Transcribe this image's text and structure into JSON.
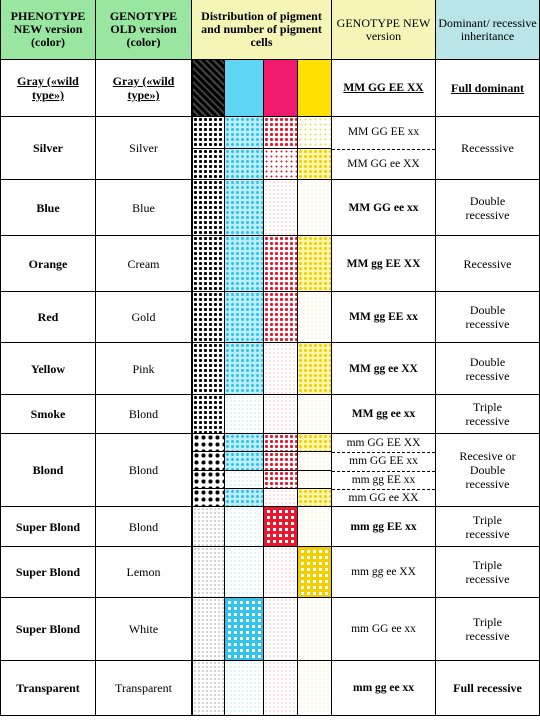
{
  "headers": {
    "phenotype_new": "PHENOTYPE NEW version (color)",
    "genotype_old": "GENOTYPE OLD version (color)",
    "distribution": "Distribution of pigment and number of pigment cells",
    "genotype_new": "GENOTYPE NEW version",
    "inheritance": "Dominant/ recessive inheritance"
  },
  "colors": {
    "header_green": "#99e6a0",
    "header_yellow": "#f5f5b8",
    "header_blue": "#b9e4e8",
    "pigment_black": "#000000",
    "pigment_cyan": "#5fd4f5",
    "pigment_red": "#e8192e",
    "pigment_yellow": "#ffe000"
  },
  "rows": [
    {
      "phenotype": "Gray («wild type»)",
      "old": "Gray («wild type»)",
      "genotypes": [
        "MM GG EE XX"
      ],
      "inheritance": "Full dominant"
    },
    {
      "phenotype": "Silver",
      "old": "Silver",
      "genotypes": [
        "MM GG EE xx",
        "MM GG ee XX"
      ],
      "inheritance": "Recesssive"
    },
    {
      "phenotype": "Blue",
      "old": "Blue",
      "genotypes": [
        "MM GG ee xx"
      ],
      "inheritance": "Double recessive"
    },
    {
      "phenotype": "Orange",
      "old": "Cream",
      "genotypes": [
        "MM gg EE XX"
      ],
      "inheritance": "Recessive"
    },
    {
      "phenotype": "Red",
      "old": "Gold",
      "genotypes": [
        "MM gg EE xx"
      ],
      "inheritance": "Double recessive"
    },
    {
      "phenotype": "Yellow",
      "old": "Pink",
      "genotypes": [
        "MM gg ee XX"
      ],
      "inheritance": "Double recessive"
    },
    {
      "phenotype": "Smoke",
      "old": "Blond",
      "genotypes": [
        "MM gg ee xx"
      ],
      "inheritance": "Triple recessive"
    },
    {
      "phenotype": "Blond",
      "old": "Blond",
      "genotypes": [
        "mm GG EE XX",
        "mm GG EE xx",
        "mm gg EE xx",
        "mm GG ee XX"
      ],
      "inheritance": "Recesive or Double recessive"
    },
    {
      "phenotype": "Super Blond",
      "old": "Blond",
      "genotypes": [
        "mm gg EE xx"
      ],
      "inheritance": "Triple recessive"
    },
    {
      "phenotype": "Super Blond",
      "old": "Lemon",
      "genotypes": [
        "mm gg ee XX"
      ],
      "inheritance": "Triple recessive"
    },
    {
      "phenotype": "Super Blond",
      "old": "White",
      "genotypes": [
        "mm GG ee xx"
      ],
      "inheritance": "Triple recessive"
    },
    {
      "phenotype": "Transparent",
      "old": "Transparent",
      "genotypes": [
        "mm gg ee xx"
      ],
      "inheritance": "Full recessive"
    }
  ]
}
